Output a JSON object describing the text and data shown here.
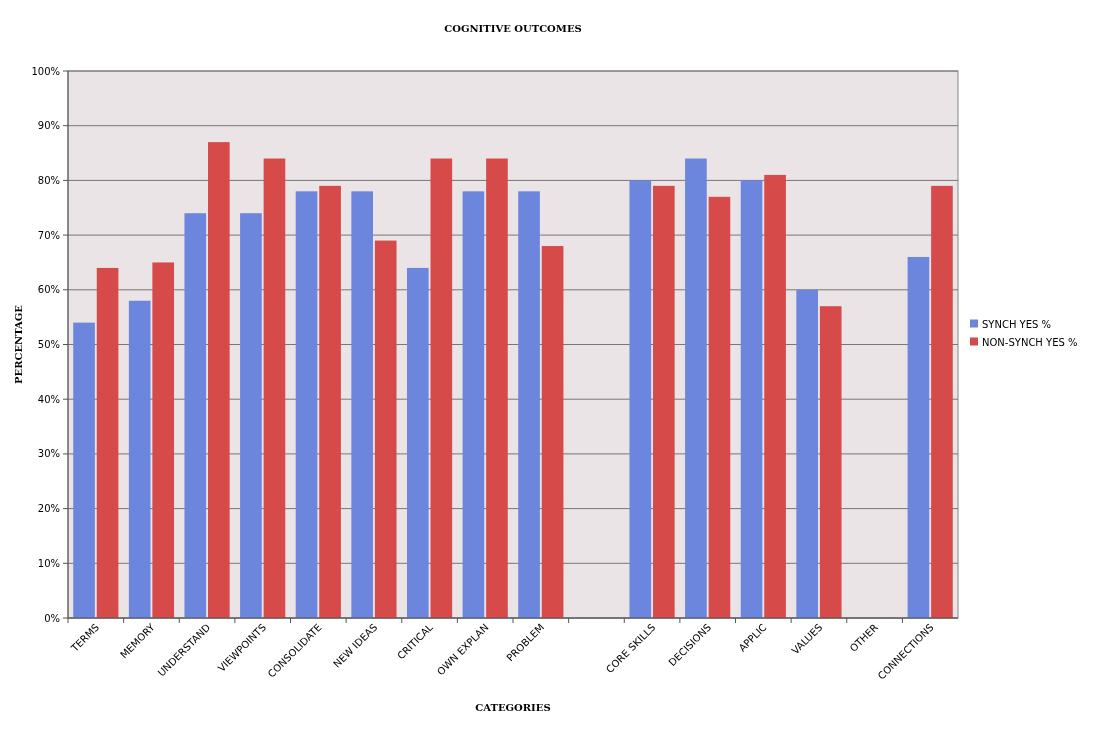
{
  "chart_data": {
    "type": "bar",
    "title": "COGNITIVE OUTCOMES",
    "xlabel": "CATEGORIES",
    "ylabel": "PERCENTAGE",
    "categories": [
      "TERMS",
      "MEMORY",
      "UNDERSTAND",
      "VIEWPOINTS",
      "CONSOLIDATE",
      "NEW IDEAS",
      "CRITICAL",
      "OWN EXPLAN",
      "PROBLEM",
      null,
      "CORE SKILLS",
      "DECISIONS",
      "APPLIC",
      "VALUES",
      "OTHER",
      "CONNECTIONS"
    ],
    "series": [
      {
        "name": "SYNCH YES %",
        "color": "#6b86dc",
        "values": [
          54,
          58,
          74,
          74,
          78,
          78,
          64,
          78,
          78,
          null,
          80,
          84,
          80,
          60,
          0,
          66
        ]
      },
      {
        "name": "NON-SYNCH YES %",
        "color": "#d64a4a",
        "values": [
          64,
          65,
          87,
          84,
          79,
          69,
          84,
          84,
          68,
          null,
          79,
          77,
          81,
          57,
          0,
          79
        ]
      }
    ],
    "ylim": [
      0,
      100
    ],
    "yticks": [
      {
        "value": 0,
        "label": "0%"
      },
      {
        "value": 10,
        "label": "10%"
      },
      {
        "value": 20,
        "label": "20%"
      },
      {
        "value": 30,
        "label": "30%"
      },
      {
        "value": 40,
        "label": "40%"
      },
      {
        "value": 50,
        "label": "50%"
      },
      {
        "value": 60,
        "label": "60%"
      },
      {
        "value": 70,
        "label": "70%"
      },
      {
        "value": 80,
        "label": "80%"
      },
      {
        "value": 90,
        "label": "90%"
      },
      {
        "value": 100,
        "label": "100%"
      }
    ],
    "grid": "y",
    "legend": "right"
  }
}
